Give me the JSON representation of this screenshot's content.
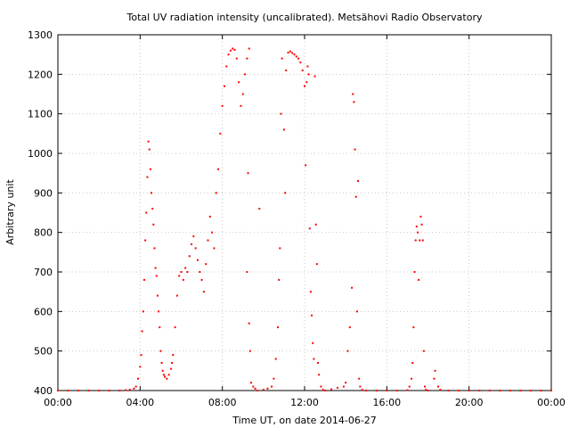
{
  "chart_data": {
    "type": "scatter",
    "title": "Total UV radiation intensity (uncalibrated). Metsähovi Radio Observatory",
    "xlabel": "Time UT, on date 2014-06-27",
    "ylabel": "Arbitrary unit",
    "xlim_hours": [
      0,
      24
    ],
    "ylim": [
      400,
      1300
    ],
    "x_ticks": [
      {
        "h": 0,
        "label": "00:00"
      },
      {
        "h": 4,
        "label": "04:00"
      },
      {
        "h": 8,
        "label": "08:00"
      },
      {
        "h": 12,
        "label": "12:00"
      },
      {
        "h": 16,
        "label": "16:00"
      },
      {
        "h": 20,
        "label": "20:00"
      },
      {
        "h": 24,
        "label": "00:00"
      }
    ],
    "y_ticks": [
      400,
      500,
      600,
      700,
      800,
      900,
      1000,
      1100,
      1200,
      1300
    ],
    "grid": true,
    "point_color": "#ff0000",
    "series": [
      {
        "points": [
          [
            0.0,
            400
          ],
          [
            0.5,
            400
          ],
          [
            1.0,
            400
          ],
          [
            1.5,
            400
          ],
          [
            2.0,
            400
          ],
          [
            2.5,
            400
          ],
          [
            3.0,
            400
          ],
          [
            3.3,
            401
          ],
          [
            3.5,
            402
          ],
          [
            3.7,
            405
          ],
          [
            3.8,
            410
          ],
          [
            3.9,
            430
          ],
          [
            4.0,
            460
          ],
          [
            4.05,
            490
          ],
          [
            4.1,
            550
          ],
          [
            4.15,
            600
          ],
          [
            4.2,
            680
          ],
          [
            4.25,
            780
          ],
          [
            4.3,
            850
          ],
          [
            4.35,
            940
          ],
          [
            4.4,
            1030
          ],
          [
            4.45,
            1010
          ],
          [
            4.5,
            960
          ],
          [
            4.55,
            900
          ],
          [
            4.6,
            860
          ],
          [
            4.65,
            820
          ],
          [
            4.7,
            760
          ],
          [
            4.75,
            710
          ],
          [
            4.8,
            690
          ],
          [
            4.85,
            640
          ],
          [
            4.9,
            600
          ],
          [
            4.95,
            560
          ],
          [
            5.0,
            500
          ],
          [
            5.05,
            470
          ],
          [
            5.1,
            450
          ],
          [
            5.15,
            440
          ],
          [
            5.2,
            435
          ],
          [
            5.3,
            430
          ],
          [
            5.4,
            440
          ],
          [
            5.5,
            455
          ],
          [
            5.55,
            470
          ],
          [
            5.6,
            490
          ],
          [
            5.7,
            560
          ],
          [
            5.8,
            640
          ],
          [
            5.9,
            690
          ],
          [
            6.0,
            700
          ],
          [
            6.1,
            680
          ],
          [
            6.2,
            710
          ],
          [
            6.3,
            700
          ],
          [
            6.4,
            740
          ],
          [
            6.5,
            770
          ],
          [
            6.6,
            790
          ],
          [
            6.7,
            760
          ],
          [
            6.8,
            730
          ],
          [
            6.9,
            700
          ],
          [
            7.0,
            680
          ],
          [
            7.1,
            650
          ],
          [
            7.2,
            720
          ],
          [
            7.3,
            780
          ],
          [
            7.4,
            840
          ],
          [
            7.5,
            800
          ],
          [
            7.6,
            760
          ],
          [
            7.7,
            900
          ],
          [
            7.8,
            960
          ],
          [
            7.9,
            1050
          ],
          [
            8.0,
            1120
          ],
          [
            8.1,
            1170
          ],
          [
            8.2,
            1220
          ],
          [
            8.3,
            1250
          ],
          [
            8.4,
            1260
          ],
          [
            8.5,
            1265
          ],
          [
            8.6,
            1262
          ],
          [
            8.7,
            1240
          ],
          [
            8.8,
            1180
          ],
          [
            8.9,
            1120
          ],
          [
            9.0,
            1150
          ],
          [
            9.1,
            1200
          ],
          [
            9.2,
            1240
          ],
          [
            9.3,
            1265
          ],
          [
            9.25,
            950
          ],
          [
            9.2,
            700
          ],
          [
            9.3,
            570
          ],
          [
            9.35,
            500
          ],
          [
            9.4,
            420
          ],
          [
            9.5,
            410
          ],
          [
            9.6,
            405
          ],
          [
            9.7,
            400
          ],
          [
            9.8,
            860
          ],
          [
            10.0,
            402
          ],
          [
            10.2,
            405
          ],
          [
            10.4,
            410
          ],
          [
            10.5,
            430
          ],
          [
            10.6,
            480
          ],
          [
            10.7,
            560
          ],
          [
            10.75,
            680
          ],
          [
            10.8,
            760
          ],
          [
            10.85,
            1100
          ],
          [
            10.9,
            1240
          ],
          [
            11.0,
            1060
          ],
          [
            11.05,
            900
          ],
          [
            11.1,
            1210
          ],
          [
            11.2,
            1255
          ],
          [
            11.3,
            1258
          ],
          [
            11.4,
            1254
          ],
          [
            11.5,
            1250
          ],
          [
            11.6,
            1245
          ],
          [
            11.7,
            1240
          ],
          [
            11.8,
            1230
          ],
          [
            11.9,
            1210
          ],
          [
            12.0,
            1170
          ],
          [
            12.05,
            970
          ],
          [
            12.1,
            1180
          ],
          [
            12.15,
            1220
          ],
          [
            12.2,
            1200
          ],
          [
            12.25,
            810
          ],
          [
            12.3,
            650
          ],
          [
            12.35,
            590
          ],
          [
            12.4,
            520
          ],
          [
            12.45,
            480
          ],
          [
            12.5,
            1195
          ],
          [
            12.55,
            820
          ],
          [
            12.6,
            720
          ],
          [
            12.65,
            470
          ],
          [
            12.7,
            440
          ],
          [
            12.8,
            410
          ],
          [
            12.9,
            402
          ],
          [
            13.0,
            400
          ],
          [
            13.3,
            403
          ],
          [
            13.6,
            407
          ],
          [
            13.9,
            410
          ],
          [
            14.0,
            420
          ],
          [
            14.1,
            500
          ],
          [
            14.2,
            560
          ],
          [
            14.3,
            660
          ],
          [
            14.35,
            1150
          ],
          [
            14.4,
            1130
          ],
          [
            14.45,
            1010
          ],
          [
            14.5,
            890
          ],
          [
            14.55,
            600
          ],
          [
            14.6,
            930
          ],
          [
            14.65,
            430
          ],
          [
            14.7,
            410
          ],
          [
            14.8,
            402
          ],
          [
            15.0,
            400
          ],
          [
            15.5,
            400
          ],
          [
            16.0,
            400
          ],
          [
            16.5,
            400
          ],
          [
            17.0,
            401
          ],
          [
            17.1,
            410
          ],
          [
            17.2,
            430
          ],
          [
            17.25,
            470
          ],
          [
            17.3,
            560
          ],
          [
            17.35,
            700
          ],
          [
            17.4,
            780
          ],
          [
            17.45,
            815
          ],
          [
            17.5,
            800
          ],
          [
            17.55,
            680
          ],
          [
            17.6,
            780
          ],
          [
            17.65,
            840
          ],
          [
            17.7,
            820
          ],
          [
            17.75,
            780
          ],
          [
            17.8,
            500
          ],
          [
            17.85,
            410
          ],
          [
            17.9,
            402
          ],
          [
            18.0,
            400
          ],
          [
            18.3,
            430
          ],
          [
            18.35,
            450
          ],
          [
            18.5,
            410
          ],
          [
            18.6,
            402
          ],
          [
            19.0,
            400
          ],
          [
            19.5,
            400
          ],
          [
            20.0,
            400
          ],
          [
            20.5,
            400
          ],
          [
            21.0,
            400
          ],
          [
            21.5,
            400
          ],
          [
            22.0,
            400
          ],
          [
            22.5,
            400
          ],
          [
            23.0,
            400
          ],
          [
            23.5,
            400
          ],
          [
            24.0,
            400
          ]
        ]
      }
    ]
  }
}
